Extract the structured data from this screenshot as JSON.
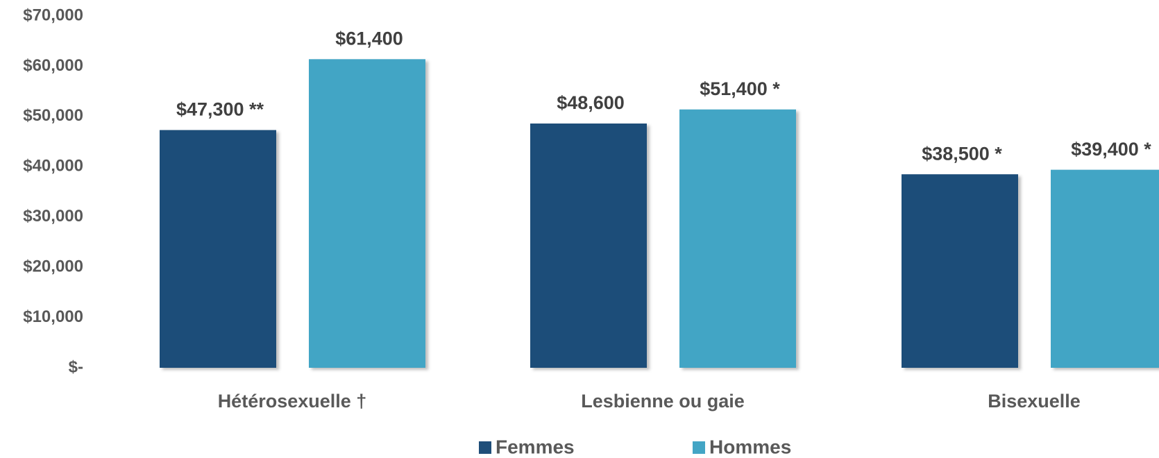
{
  "chart_data": {
    "type": "bar",
    "categories": [
      "Hétérosexuelle †",
      "Lesbienne ou gaie",
      "Bisexuelle"
    ],
    "series": [
      {
        "name": "Femmes",
        "color": "#1f4e79",
        "values": [
          47300,
          48600,
          38500
        ],
        "value_labels": [
          "$47,300 **",
          "$48,600",
          "$38,500 *"
        ]
      },
      {
        "name": "Hommes",
        "color": "#43a5c5",
        "values": [
          61400,
          51400,
          39400
        ],
        "value_labels": [
          "$61,400",
          "$51,400 *",
          "$39,400 *"
        ]
      }
    ],
    "ylim": [
      0,
      70000
    ],
    "yticks": [
      {
        "value": 0,
        "label": "$-"
      },
      {
        "value": 10000,
        "label": "$10,000"
      },
      {
        "value": 20000,
        "label": "$20,000"
      },
      {
        "value": 30000,
        "label": "$30,000"
      },
      {
        "value": 40000,
        "label": "$40,000"
      },
      {
        "value": 50000,
        "label": "$50,000"
      },
      {
        "value": 60000,
        "label": "$60,000"
      },
      {
        "value": 70000,
        "label": "$70,000"
      }
    ],
    "legend": "bottom"
  }
}
